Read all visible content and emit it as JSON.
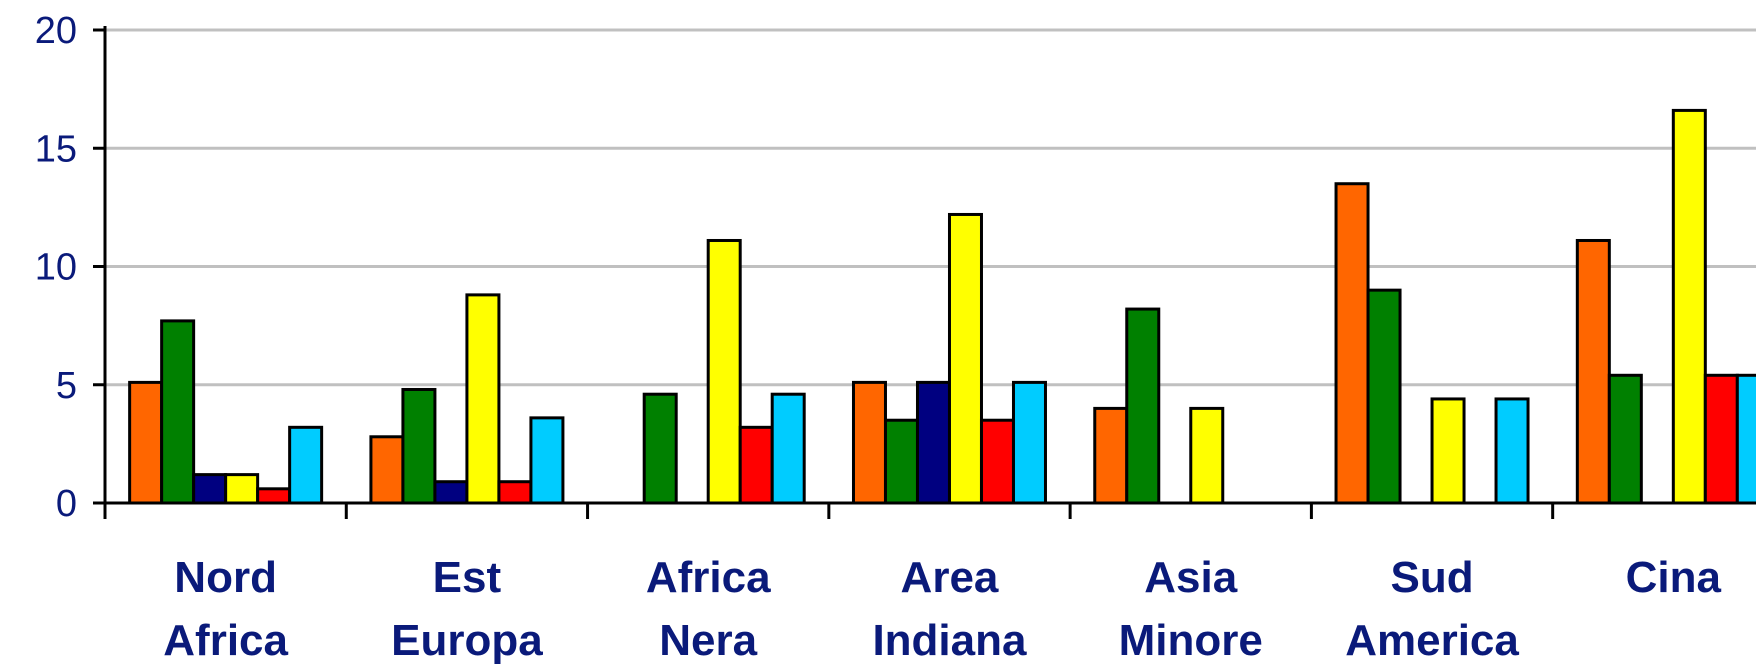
{
  "chart_data": {
    "type": "bar",
    "title": "",
    "xlabel": "",
    "ylabel": "",
    "ylim": [
      0,
      20
    ],
    "yticks": [
      "0",
      "5",
      "10",
      "15",
      "20"
    ],
    "grid": true,
    "legend": "none",
    "categories": [
      [
        "Nord",
        "Africa"
      ],
      [
        "Est",
        "Europa"
      ],
      [
        "Africa",
        "Nera"
      ],
      [
        "Area",
        "Indiana"
      ],
      [
        "Asia",
        "Minore"
      ],
      [
        "Sud",
        "America"
      ],
      [
        "Cina"
      ]
    ],
    "series": [
      {
        "color": "#ff6600",
        "values": [
          5.1,
          2.8,
          0,
          5.1,
          4.0,
          13.5,
          11.1
        ]
      },
      {
        "color": "#008000",
        "values": [
          7.7,
          4.8,
          4.6,
          3.5,
          8.2,
          9.0,
          5.4
        ]
      },
      {
        "color": "#000080",
        "values": [
          1.2,
          0.9,
          0,
          5.1,
          0,
          0,
          0
        ]
      },
      {
        "color": "#ffff00",
        "values": [
          1.2,
          8.8,
          11.1,
          12.2,
          4.0,
          4.4,
          16.6
        ]
      },
      {
        "color": "#ff0000",
        "values": [
          0.6,
          0.9,
          3.2,
          3.5,
          0,
          0,
          5.4
        ]
      },
      {
        "color": "#00ccff",
        "values": [
          3.2,
          3.6,
          4.6,
          5.1,
          0,
          4.4,
          5.4
        ]
      }
    ]
  }
}
